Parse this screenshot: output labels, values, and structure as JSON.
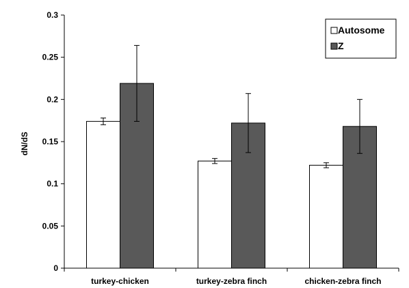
{
  "chart_data": {
    "type": "bar",
    "title": "",
    "xlabel": "",
    "ylabel": "dN/dS",
    "ylim": [
      0,
      0.3
    ],
    "yticks": [
      0,
      0.05,
      0.1,
      0.15,
      0.2,
      0.25,
      0.3
    ],
    "ytick_labels": [
      "0",
      "0.05",
      "0.1",
      "0.15",
      "0.2",
      "0.25",
      "0.3"
    ],
    "categories": [
      "turkey-chicken",
      "turkey-zebra finch",
      "chicken-zebra finch"
    ],
    "series": [
      {
        "name": "Autosome",
        "color": "#ffffff",
        "values": [
          0.174,
          0.127,
          0.122
        ],
        "error": [
          0.004,
          0.003,
          0.003
        ]
      },
      {
        "name": "Z",
        "color": "#595959",
        "values": [
          0.219,
          0.172,
          0.168
        ],
        "error": [
          0.045,
          0.035,
          0.032
        ]
      }
    ],
    "grid": false,
    "legend_position": "top-right"
  }
}
